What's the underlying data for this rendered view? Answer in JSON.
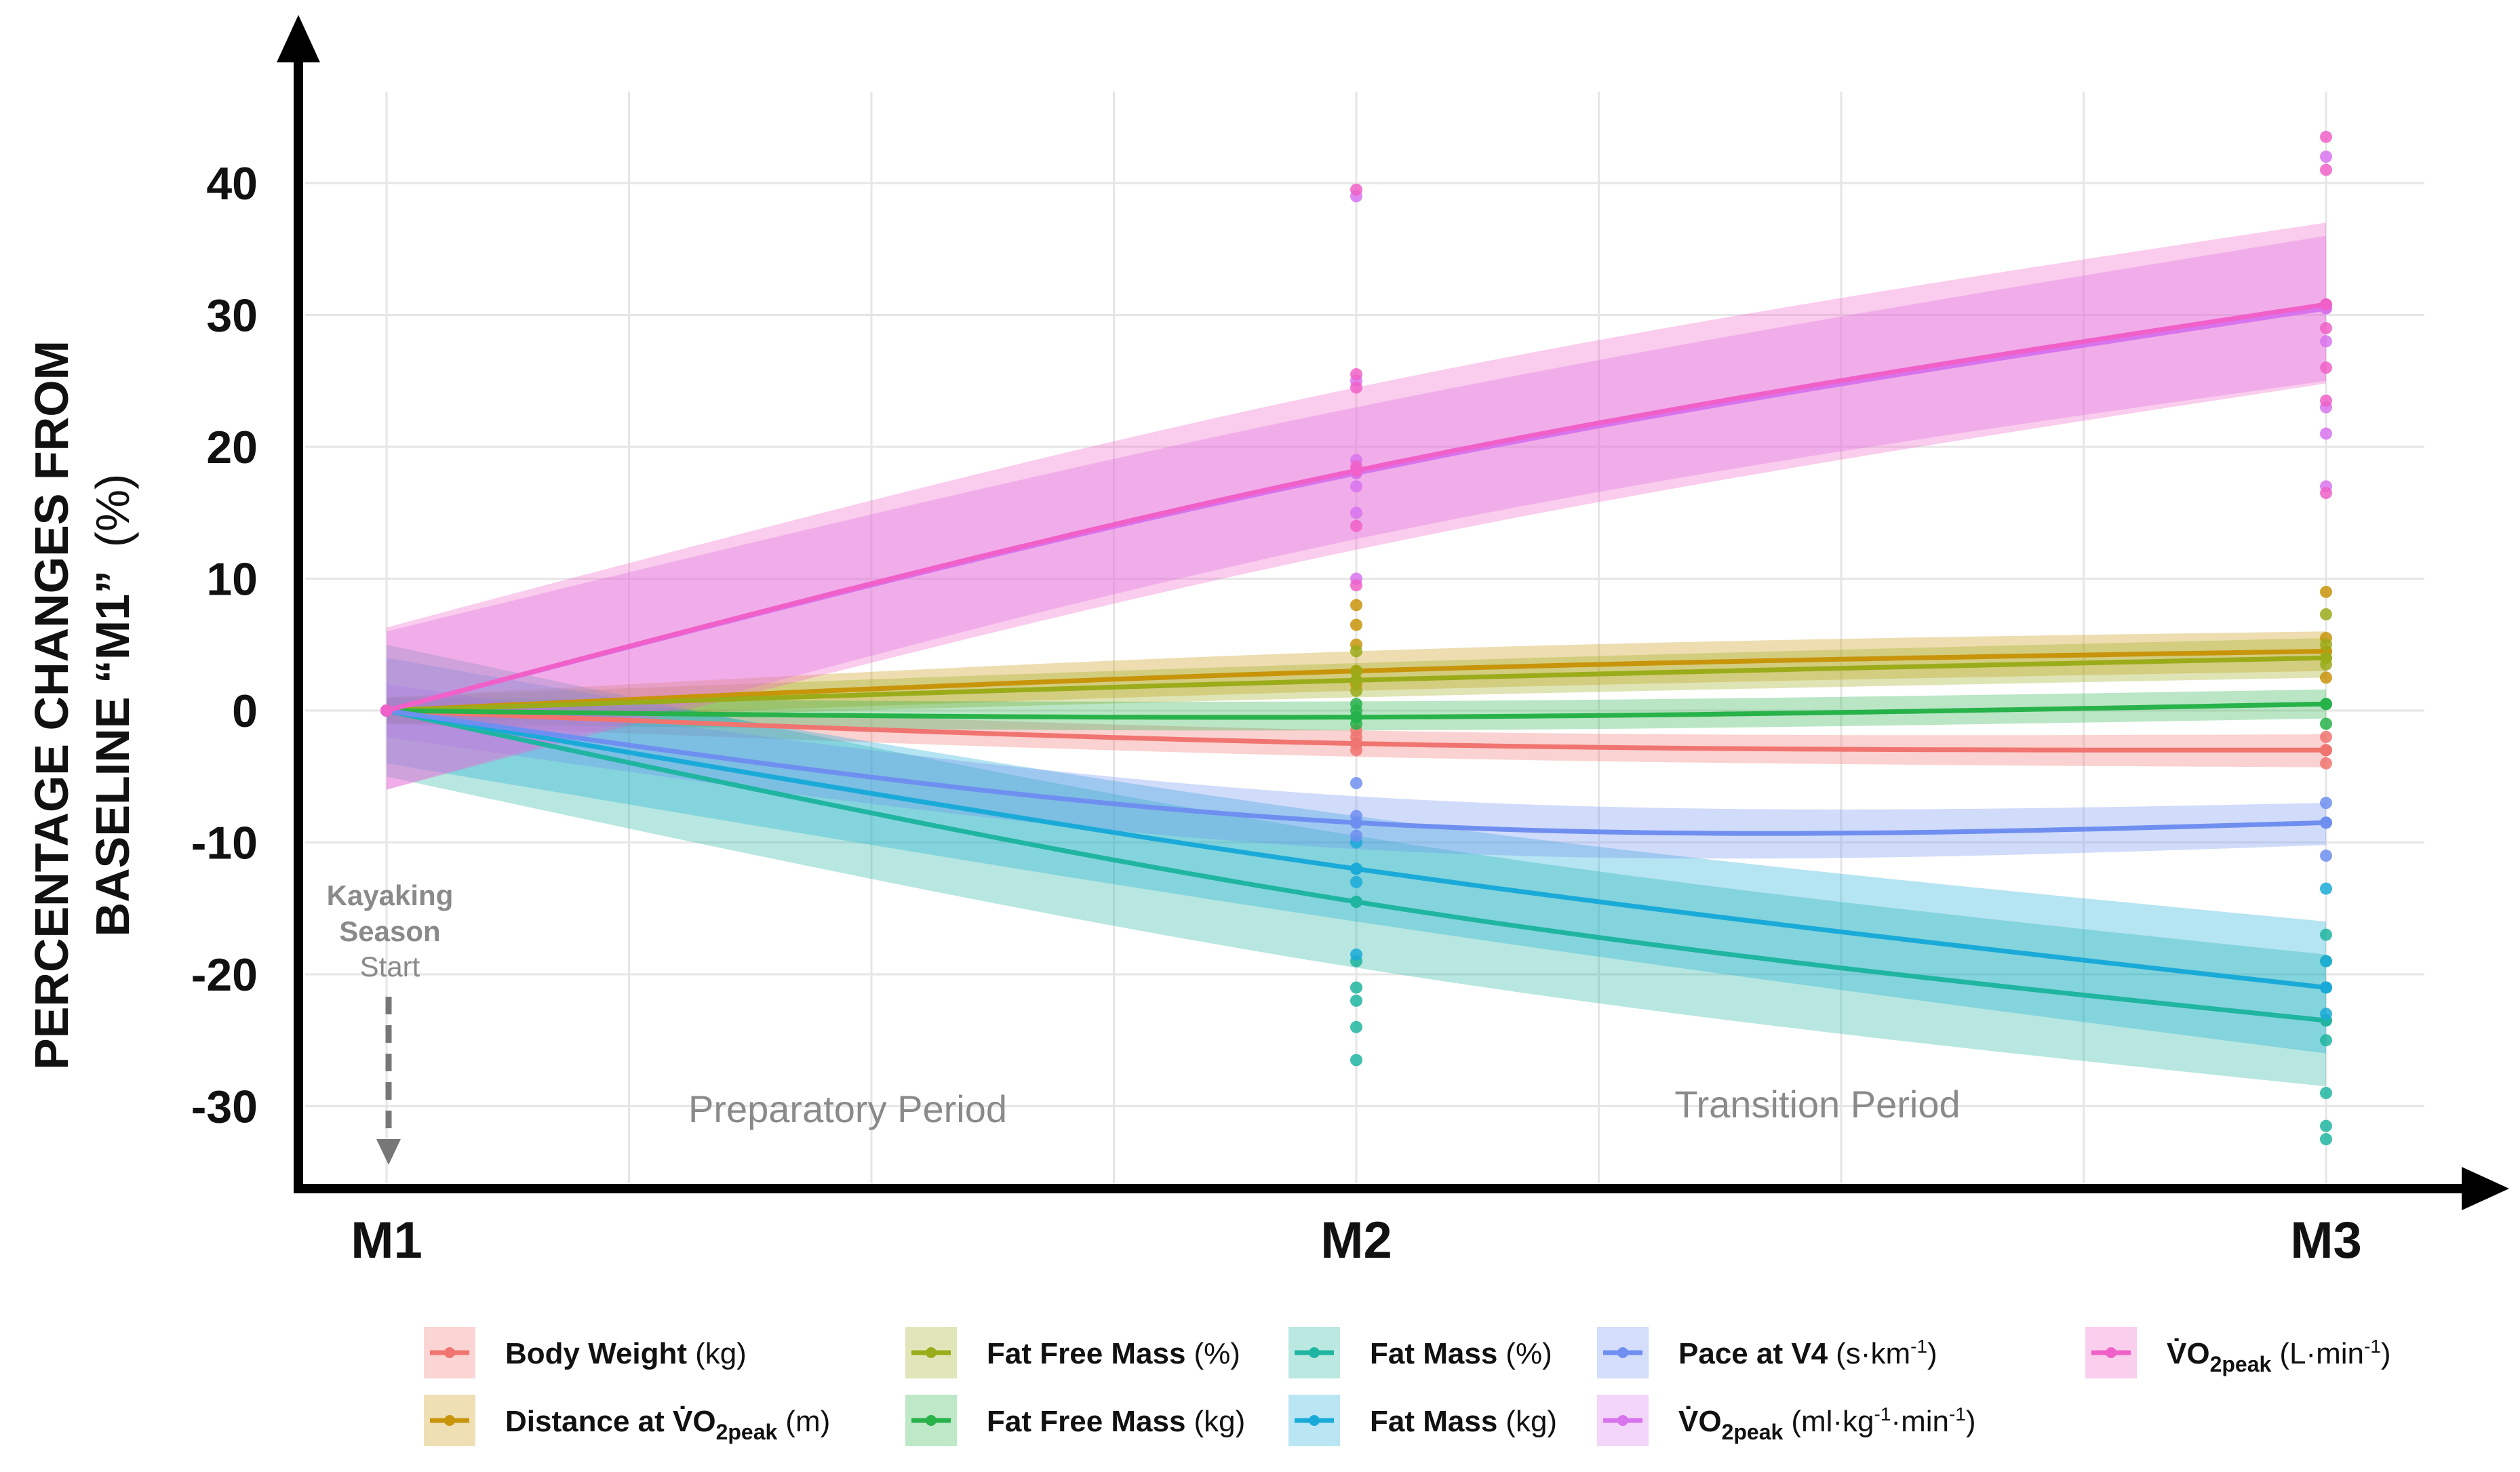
{
  "chart_data": {
    "type": "line",
    "title": "",
    "ylabel_line1": "PERCENTAGE CHANGES FROM",
    "ylabel_line2_bold": "BASELINE “M1”",
    "ylabel_line2_unit": "(%)",
    "xlabel": "",
    "categories": [
      "M1",
      "M2",
      "M3"
    ],
    "yticks": [
      "40",
      "30",
      "20",
      "10",
      "0",
      "-10",
      "-20",
      "-30"
    ],
    "ylim": [
      -36,
      48
    ],
    "xlim": [
      1,
      3
    ],
    "grid": true,
    "periods": [
      "Preparatory Period",
      "Transition Period"
    ],
    "annotation": {
      "line1": "Kayaking",
      "line2": "Season",
      "line3": "Start"
    },
    "series": [
      {
        "name": "Body Weight",
        "unit": "(kg)",
        "color": "#f07470",
        "values": [
          0,
          -2.5,
          -3.0
        ],
        "band": [
          [
            -1.0,
            1.0
          ],
          [
            -3.5,
            -1.5
          ],
          [
            -4.3,
            -1.8
          ]
        ],
        "points": [
          [
            2,
            -2
          ],
          [
            2,
            -3
          ],
          [
            2,
            -1.5
          ],
          [
            3,
            -3
          ],
          [
            3,
            -4
          ],
          [
            3,
            -2
          ]
        ]
      },
      {
        "name": "Distance at VO2peak",
        "name_parts": [
          "Distance at ",
          "V̇O",
          "2peak"
        ],
        "unit": "(m)",
        "color": "#c8940a",
        "values": [
          0,
          3.0,
          4.5
        ],
        "band": [
          [
            -1.0,
            1.0
          ],
          [
            1.5,
            4.5
          ],
          [
            3.0,
            6.0
          ]
        ],
        "points": [
          [
            2,
            8
          ],
          [
            2,
            6.5
          ],
          [
            2,
            5
          ],
          [
            2,
            3
          ],
          [
            2,
            2
          ],
          [
            3,
            9
          ],
          [
            3,
            5.5
          ],
          [
            3,
            4
          ],
          [
            3,
            2.5
          ]
        ]
      },
      {
        "name": "Fat Free Mass",
        "unit": "(%)",
        "color": "#9aac1a",
        "values": [
          0,
          2.3,
          4.0
        ],
        "band": [
          [
            -1.0,
            1.0
          ],
          [
            1.0,
            3.6
          ],
          [
            2.5,
            5.5
          ]
        ],
        "points": [
          [
            2,
            4.5
          ],
          [
            2,
            3
          ],
          [
            2,
            1.5
          ],
          [
            3,
            7.3
          ],
          [
            3,
            5
          ],
          [
            3,
            3.5
          ]
        ]
      },
      {
        "name": "Fat Free Mass",
        "unit": "(kg)",
        "color": "#27b24a",
        "values": [
          0,
          -0.5,
          0.5
        ],
        "band": [
          [
            -1.0,
            1.0
          ],
          [
            -1.5,
            0.7
          ],
          [
            -0.6,
            1.6
          ]
        ],
        "points": [
          [
            2,
            0
          ],
          [
            2,
            -1
          ],
          [
            2,
            0.5
          ],
          [
            3,
            0.5
          ],
          [
            3,
            -1
          ]
        ]
      },
      {
        "name": "Fat Mass",
        "unit": "(%)",
        "color": "#1fb5a0",
        "values": [
          0,
          -14.5,
          -23.5
        ],
        "band": [
          [
            -5.0,
            5.0
          ],
          [
            -19.5,
            -9.5
          ],
          [
            -28.5,
            -18.5
          ]
        ],
        "points": [
          [
            2,
            -19
          ],
          [
            2,
            -21
          ],
          [
            2,
            -22
          ],
          [
            2,
            -24
          ],
          [
            2,
            -26.5
          ],
          [
            3,
            -17
          ],
          [
            3,
            -19
          ],
          [
            3,
            -25
          ],
          [
            3,
            -29
          ],
          [
            3,
            -31.5
          ],
          [
            3,
            -32.5
          ]
        ]
      },
      {
        "name": "Fat Mass",
        "unit": "(kg)",
        "color": "#1aaad8",
        "values": [
          0,
          -12.0,
          -21.0
        ],
        "band": [
          [
            -4.0,
            4.0
          ],
          [
            -16.0,
            -8.0
          ],
          [
            -26.0,
            -16.0
          ]
        ],
        "points": [
          [
            2,
            -10
          ],
          [
            2,
            -13
          ],
          [
            2,
            -18.5
          ],
          [
            3,
            -13.5
          ],
          [
            3,
            -19
          ],
          [
            3,
            -21
          ],
          [
            3,
            -23
          ]
        ]
      },
      {
        "name": "Pace at V4",
        "unit": "(s·km",
        "unit_sup": "-1",
        "unit_end": ")",
        "color": "#6f8ff0",
        "values": [
          0,
          -8.5,
          -8.5
        ],
        "band": [
          [
            -2.0,
            2.0
          ],
          [
            -10.5,
            -6.5
          ],
          [
            -10.2,
            -7.0
          ]
        ],
        "points": [
          [
            2,
            -5.5
          ],
          [
            2,
            -8
          ],
          [
            2,
            -9.5
          ],
          [
            3,
            -7
          ],
          [
            3,
            -8.5
          ],
          [
            3,
            -11
          ]
        ]
      },
      {
        "name": "VO2peak",
        "name_parts": [
          "V̇O",
          "2peak"
        ],
        "unit": "(ml·kg",
        "unit_sup": "-1",
        "unit_mid": "·min",
        "unit_sup2": "-1",
        "unit_end": ")",
        "color": "#d873ee",
        "values": [
          0,
          18.0,
          30.5
        ],
        "band": [
          [
            -6.0,
            6.0
          ],
          [
            13.0,
            23.0
          ],
          [
            25.0,
            36.0
          ]
        ],
        "points": [
          [
            2,
            39
          ],
          [
            2,
            25
          ],
          [
            2,
            19
          ],
          [
            2,
            17
          ],
          [
            2,
            15
          ],
          [
            2,
            10
          ],
          [
            3,
            42
          ],
          [
            3,
            28
          ],
          [
            3,
            23
          ],
          [
            3,
            21
          ],
          [
            3,
            17
          ]
        ]
      },
      {
        "name": "VO2peak",
        "name_parts": [
          "V̇O",
          "2peak"
        ],
        "unit": "(L·min",
        "unit_sup": "-1",
        "unit_end": ")",
        "color": "#f060c8",
        "values": [
          0,
          18.2,
          30.8
        ],
        "band": [
          [
            -6.0,
            6.3
          ],
          [
            12.2,
            24.5
          ],
          [
            24.8,
            37.0
          ]
        ],
        "points": [
          [
            2,
            39.5
          ],
          [
            2,
            25.5
          ],
          [
            2,
            24.5
          ],
          [
            2,
            18.5
          ],
          [
            2,
            14
          ],
          [
            2,
            9.5
          ],
          [
            3,
            43.5
          ],
          [
            3,
            41
          ],
          [
            3,
            29
          ],
          [
            3,
            26
          ],
          [
            3,
            23.5
          ],
          [
            3,
            16.5
          ]
        ]
      }
    ]
  }
}
